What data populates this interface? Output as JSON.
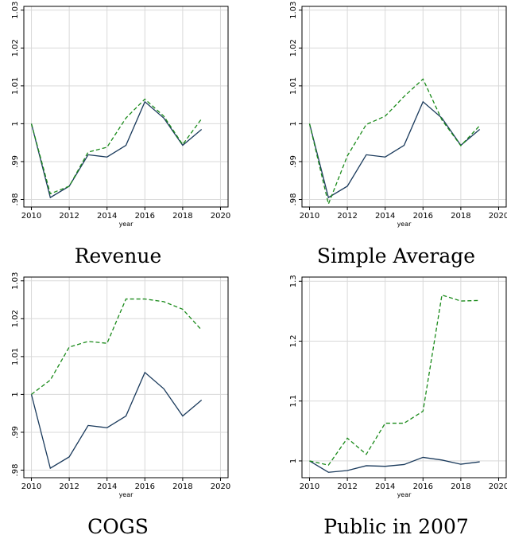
{
  "chart_data": [
    {
      "type": "line",
      "title": "Revenue",
      "x_label": "year",
      "x": [
        2010,
        2011,
        2012,
        2013,
        2014,
        2015,
        2016,
        2017,
        2018,
        2019
      ],
      "series": [
        {
          "color": "#1a3a5c",
          "linestyle": "solid",
          "values": [
            1.0,
            0.9805,
            0.9835,
            0.9918,
            0.9912,
            0.9943,
            1.0058,
            1.0015,
            0.9943,
            0.9985
          ]
        },
        {
          "color": "#1a8a1a",
          "linestyle": "dashed",
          "values": [
            1.0,
            0.9815,
            0.9835,
            0.9925,
            0.9938,
            1.0015,
            1.0065,
            1.002,
            0.9945,
            1.0013
          ]
        }
      ],
      "xlim": [
        2009.6,
        2020.4
      ],
      "xticks": [
        2010,
        2012,
        2014,
        2016,
        2018,
        2020
      ],
      "ylim": [
        0.978,
        1.031
      ],
      "yticks": [
        {
          "value": 0.98,
          "label": ".98"
        },
        {
          "value": 0.99,
          "label": ".99"
        },
        1,
        1.01,
        1.02,
        1.03
      ],
      "grid": true
    },
    {
      "type": "line",
      "title": "Simple Average",
      "x_label": "year",
      "x": [
        2010,
        2011,
        2012,
        2013,
        2014,
        2015,
        2016,
        2017,
        2018,
        2019
      ],
      "series": [
        {
          "color": "#1a3a5c",
          "linestyle": "solid",
          "values": [
            1.0,
            0.9805,
            0.9835,
            0.9918,
            0.9912,
            0.9943,
            1.0058,
            1.0015,
            0.9943,
            0.9985
          ]
        },
        {
          "color": "#1a8a1a",
          "linestyle": "dashed",
          "values": [
            1.0,
            0.9788,
            0.9915,
            0.9998,
            1.002,
            1.0072,
            1.0118,
            1.001,
            0.9942,
            0.9995
          ]
        }
      ],
      "xlim": [
        2009.6,
        2020.4
      ],
      "xticks": [
        2010,
        2012,
        2014,
        2016,
        2018,
        2020
      ],
      "ylim": [
        0.978,
        1.031
      ],
      "yticks": [
        {
          "value": 0.98,
          "label": ".98"
        },
        {
          "value": 0.99,
          "label": ".99"
        },
        1,
        1.01,
        1.02,
        1.03
      ],
      "grid": true
    },
    {
      "type": "line",
      "title": "COGS",
      "x_label": "year",
      "x": [
        2010,
        2011,
        2012,
        2013,
        2014,
        2015,
        2016,
        2017,
        2018,
        2019
      ],
      "series": [
        {
          "color": "#1a3a5c",
          "linestyle": "solid",
          "values": [
            1.0,
            0.9805,
            0.9835,
            0.9918,
            0.9912,
            0.9943,
            1.0058,
            1.0015,
            0.9943,
            0.9985
          ]
        },
        {
          "color": "#1a8a1a",
          "linestyle": "dashed",
          "values": [
            1.0,
            1.0038,
            1.0125,
            1.014,
            1.0135,
            1.0252,
            1.0252,
            1.0245,
            1.0225,
            1.017
          ]
        }
      ],
      "xlim": [
        2009.6,
        2020.4
      ],
      "xticks": [
        2010,
        2012,
        2014,
        2016,
        2018,
        2020
      ],
      "ylim": [
        0.978,
        1.031
      ],
      "yticks": [
        {
          "value": 0.98,
          "label": ".98"
        },
        {
          "value": 0.99,
          "label": ".99"
        },
        1,
        1.01,
        1.02,
        1.03
      ],
      "grid": true
    },
    {
      "type": "line",
      "title": "Public in 2007",
      "x_label": "year",
      "x": [
        2010,
        2011,
        2012,
        2013,
        2014,
        2015,
        2016,
        2017,
        2018,
        2019
      ],
      "series": [
        {
          "color": "#1a3a5c",
          "linestyle": "solid",
          "values": [
            1.0,
            0.981,
            0.984,
            0.992,
            0.991,
            0.994,
            1.006,
            1.0015,
            0.9945,
            0.9985
          ]
        },
        {
          "color": "#1a8a1a",
          "linestyle": "dashed",
          "values": [
            1.0,
            0.993,
            1.038,
            1.011,
            1.063,
            1.063,
            1.083,
            1.277,
            1.267,
            1.268
          ]
        }
      ],
      "xlim": [
        2009.6,
        2020.4
      ],
      "xticks": [
        2010,
        2012,
        2014,
        2016,
        2018,
        2020
      ],
      "ylim": [
        0.972,
        1.307
      ],
      "yticks": [
        1,
        1.1,
        1.2,
        1.3
      ],
      "grid": true
    }
  ]
}
